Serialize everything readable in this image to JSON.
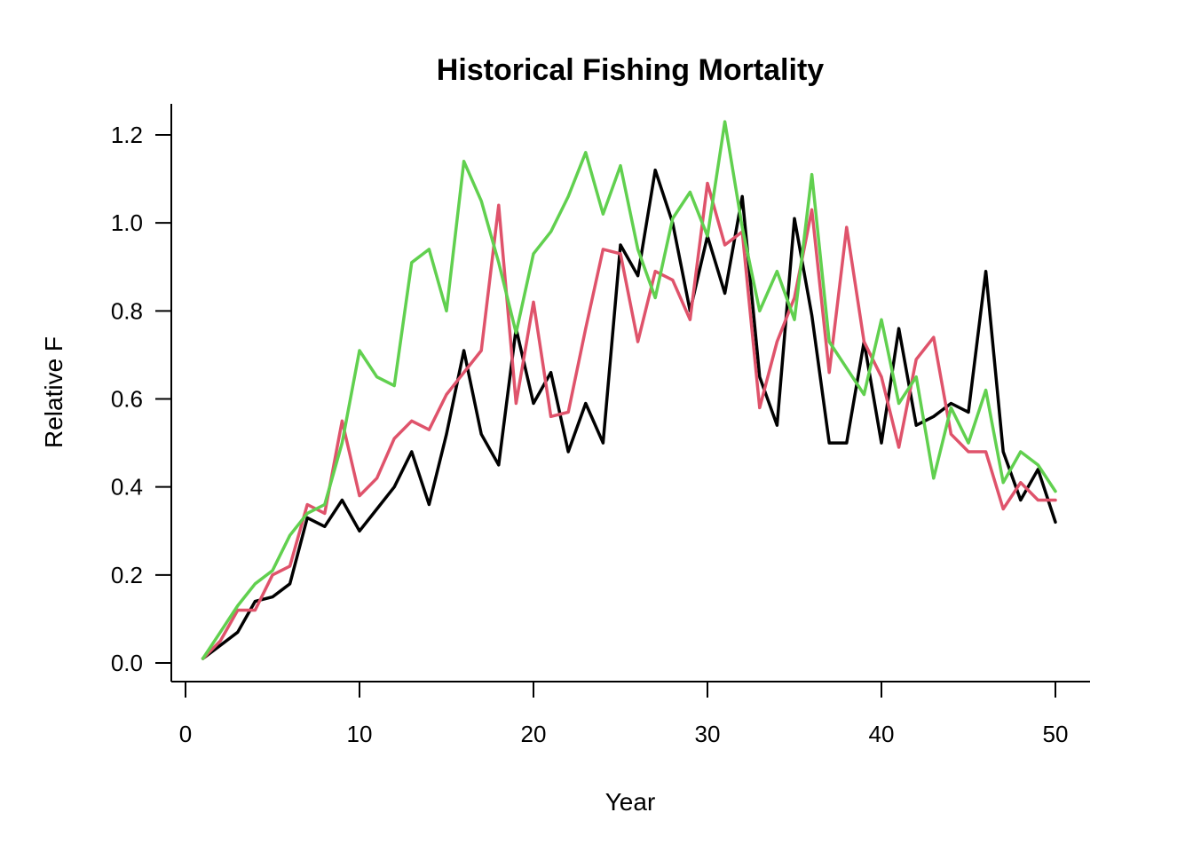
{
  "chart_data": {
    "type": "line",
    "title": "Historical Fishing Mortality",
    "xlabel": "Year",
    "ylabel": "Relative F",
    "xlim": [
      0,
      51
    ],
    "ylim": [
      -0.04,
      1.28
    ],
    "xticks": [
      0,
      10,
      20,
      30,
      40,
      50
    ],
    "yticks": [
      0.0,
      0.2,
      0.4,
      0.6,
      0.8,
      1.0,
      1.2
    ],
    "ytick_labels": [
      "0.0",
      "0.2",
      "0.4",
      "0.6",
      "0.8",
      "1.0",
      "1.2"
    ],
    "grid": false,
    "legend": "none",
    "x": [
      1,
      2,
      3,
      4,
      5,
      6,
      7,
      8,
      9,
      10,
      11,
      12,
      13,
      14,
      15,
      16,
      17,
      18,
      19,
      20,
      21,
      22,
      23,
      24,
      25,
      26,
      27,
      28,
      29,
      30,
      31,
      32,
      33,
      34,
      35,
      36,
      37,
      38,
      39,
      40,
      41,
      42,
      43,
      44,
      45,
      46,
      47,
      48,
      49,
      50
    ],
    "series": [
      {
        "color": "#000000",
        "values": [
          0.01,
          0.04,
          0.07,
          0.14,
          0.15,
          0.18,
          0.33,
          0.31,
          0.37,
          0.3,
          0.35,
          0.4,
          0.48,
          0.36,
          0.52,
          0.71,
          0.52,
          0.45,
          0.76,
          0.59,
          0.66,
          0.48,
          0.59,
          0.5,
          0.95,
          0.88,
          1.12,
          1.0,
          0.8,
          0.97,
          0.84,
          1.06,
          0.65,
          0.54,
          1.01,
          0.79,
          0.5,
          0.5,
          0.73,
          0.5,
          0.76,
          0.54,
          0.56,
          0.59,
          0.57,
          0.89,
          0.48,
          0.37,
          0.44,
          0.32
        ]
      },
      {
        "color": "#DF536B",
        "values": [
          0.01,
          0.05,
          0.12,
          0.12,
          0.2,
          0.22,
          0.36,
          0.34,
          0.55,
          0.38,
          0.42,
          0.51,
          0.55,
          0.53,
          0.61,
          0.66,
          0.71,
          1.04,
          0.59,
          0.82,
          0.56,
          0.57,
          0.76,
          0.94,
          0.93,
          0.73,
          0.89,
          0.87,
          0.78,
          1.09,
          0.95,
          0.98,
          0.58,
          0.73,
          0.83,
          1.03,
          0.66,
          0.99,
          0.73,
          0.65,
          0.49,
          0.69,
          0.74,
          0.52,
          0.48,
          0.48,
          0.35,
          0.41,
          0.37,
          0.37
        ]
      },
      {
        "color": "#61D04F",
        "values": [
          0.01,
          0.07,
          0.13,
          0.18,
          0.21,
          0.29,
          0.34,
          0.36,
          0.5,
          0.71,
          0.65,
          0.63,
          0.91,
          0.94,
          0.8,
          1.14,
          1.05,
          0.91,
          0.75,
          0.93,
          0.98,
          1.06,
          1.16,
          1.02,
          1.13,
          0.94,
          0.83,
          1.01,
          1.07,
          0.97,
          1.23,
          0.99,
          0.8,
          0.89,
          0.78,
          1.11,
          0.73,
          0.67,
          0.61,
          0.78,
          0.59,
          0.65,
          0.42,
          0.58,
          0.5,
          0.62,
          0.41,
          0.48,
          0.45,
          0.39
        ]
      }
    ]
  }
}
